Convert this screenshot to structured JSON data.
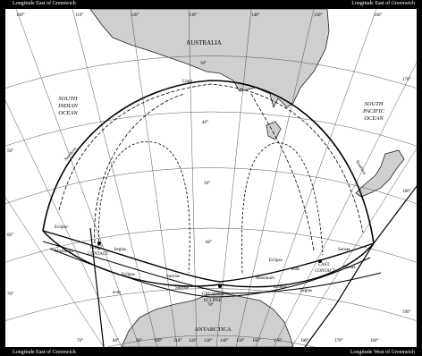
{
  "corners": {
    "top_left": "Longitude East of Greenwich",
    "top_right": "Longitude East of Greenwich",
    "bottom_left": "Longitude East of Greenwich",
    "bottom_right": "Longitude West of Greenwich"
  },
  "regions": {
    "australia": "AUSTRALIA",
    "antarctica": "ANTARCTICA",
    "south_indian_ocean": [
      "SOUTH",
      "INDIAN",
      "OCEAN"
    ],
    "south_pacific_ocean": [
      "SOUTH",
      "PACIFIC",
      "OCEAN"
    ]
  },
  "longitudes_top": [
    "100°",
    "110°",
    "120°",
    "130°",
    "140°",
    "150°",
    "160°"
  ],
  "longitudes_bottom": [
    "70°",
    "80°",
    "90°",
    "100°",
    "110°",
    "120°",
    "130°",
    "140°",
    "150°",
    "160°",
    "170°",
    "180°",
    "170°",
    "160°"
  ],
  "latitudes_left": [
    "50°",
    "60°",
    "70°"
  ],
  "latitudes_right": [
    "170°",
    "180°",
    "190°"
  ],
  "latitudes_center": [
    "30°",
    "40°",
    "50°",
    "60°",
    "70°"
  ],
  "eclipse_labels": {
    "limit": "Limit",
    "northern": "Northern",
    "southern": "Southern",
    "first_contact": [
      "FIRST",
      "CONTACT"
    ],
    "last_contact": [
      "LAST",
      "CONTACT"
    ],
    "greatest_eclipse": [
      "GREATEST",
      "ECLIPSE"
    ],
    "eclipse": "Eclipse",
    "begins": "begins",
    "ends": "ends",
    "sunrise": "Sunrise",
    "sunset": "Sunset",
    "maximum": "Maximum",
    "at": "at"
  },
  "colors": {
    "land": "#cfcfcf",
    "water": "#ffffff",
    "grid": "#555555",
    "path": "#000000"
  }
}
